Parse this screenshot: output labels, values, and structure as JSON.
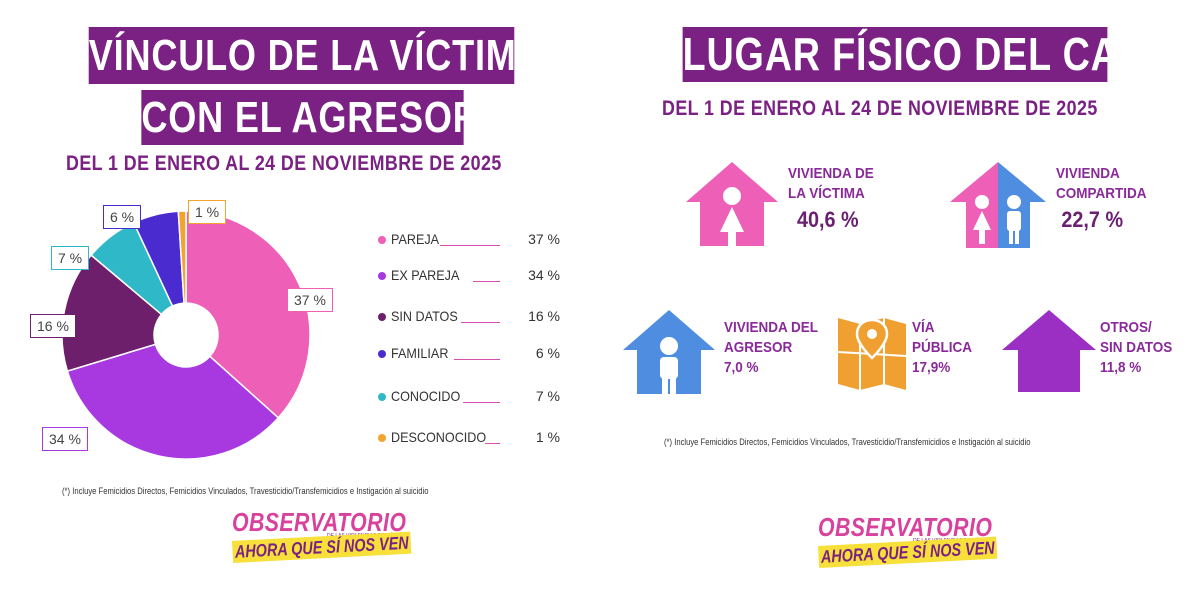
{
  "left": {
    "title_line1": "VÍNCULO DE LA VÍCTIMA",
    "title_line2": "CON EL AGRESOR",
    "subtitle": "DEL 1 DE ENERO AL 24 DE NOVIEMBRE DE 2025",
    "footnote": "(*) Incluye Femicidios Directos, Femicidios Vinculados,  Travesticidio/Transfemicidios e Instigación al suicidio"
  },
  "right": {
    "title": "LUGAR FÍSICO DEL CASO",
    "subtitle": "DEL 1 DE ENERO AL 24 DE NOVIEMBRE DE 2025",
    "footnote": "(*) Incluye Femicidios Directos, Femicidios Vinculados,  Travesticidio/Transfemicidios e Instigación al suicidio",
    "places": [
      {
        "line1": "VIVIENDA DE",
        "line2": "LA VÍCTIMA",
        "value": "40,6 %",
        "icon": "house-woman-icon",
        "color": "#ee5fb8"
      },
      {
        "line1": "VIVIENDA",
        "line2": "COMPARTIDA",
        "value": "22,7 %",
        "icon": "house-couple-icon",
        "color": "#ee5fb8"
      },
      {
        "line1": "VIVIENDA DEL",
        "line2": "AGRESOR",
        "value": "7,0 %",
        "icon": "house-man-icon",
        "color": "#4f8de0"
      },
      {
        "line1": "VÍA",
        "line2": "PÚBLICA",
        "value": "17,9%",
        "icon": "map-pin-icon",
        "color": "#f0a030"
      },
      {
        "line1": "OTROS/",
        "line2": "SIN DATOS",
        "value": "11,8 %",
        "icon": "house-purple-icon",
        "color": "#9b2fc4"
      }
    ]
  },
  "logo": {
    "title": "OBSERVATORIO",
    "small": "DE LAS VIOLENCIAS DE GÉNERO",
    "strip": "AHORA QUE SÍ NOS VEN"
  },
  "chart_data": {
    "type": "pie",
    "style": "donut",
    "title": "VÍNCULO DE LA VÍCTIMA CON EL AGRESOR",
    "categories": [
      "PAREJA",
      "EX PAREJA",
      "SIN DATOS",
      "FAMILIAR",
      "CONOCIDO",
      "DESCONOCIDO"
    ],
    "values": [
      37,
      34,
      16,
      6,
      7,
      1
    ],
    "value_labels": [
      "37 %",
      "34 %",
      "16 %",
      "6 %",
      "7 %",
      "1 %"
    ],
    "slice_labels": [
      "37 %",
      "34 %",
      "16 %",
      "6 %",
      "7 %",
      "1 %"
    ],
    "colors": [
      "#ee5fb8",
      "#a838e0",
      "#6e1f6b",
      "#4a2bd0",
      "#2fb8c8",
      "#f2a52e"
    ],
    "draw_order": [
      0,
      1,
      2,
      4,
      3,
      5
    ],
    "legend_position": "right"
  }
}
